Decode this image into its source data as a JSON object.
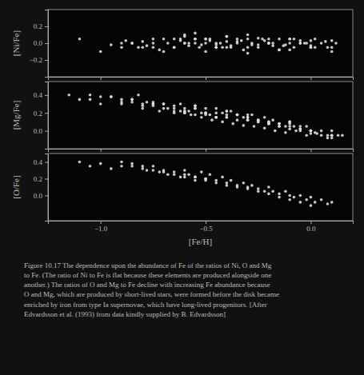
{
  "chart_data": [
    {
      "type": "scatter",
      "ylabel": "[Ni/Fe]",
      "color": "#dddddd",
      "tick_labels": "y",
      "xlim": [
        -1.25,
        0.2
      ],
      "ylim": [
        -0.4,
        0.4
      ],
      "xticks": [
        -1.0,
        -0.5,
        0.0
      ],
      "yticks": [
        {
          "value": -0.2,
          "label": "−0.2"
        },
        {
          "value": 0.0,
          "label": "0.0"
        },
        0.2
      ],
      "x": [
        -1.1,
        -0.95,
        -0.9,
        -0.88,
        -0.85,
        -0.82,
        -0.8,
        -0.78,
        -0.75,
        -0.72,
        -0.7,
        -0.68,
        -0.65,
        -0.62,
        -0.6,
        -0.58,
        -0.55,
        -0.52,
        -0.5,
        -0.48,
        -0.45,
        -0.42,
        -0.4,
        -0.38,
        -0.35,
        -0.32,
        -0.3,
        -0.28,
        -0.25,
        -0.22,
        -0.2,
        -0.18,
        -0.15,
        -0.12,
        -0.1,
        -0.08,
        -0.05,
        -0.02,
        0.0,
        0.02,
        0.05,
        0.08,
        0.1,
        -0.6,
        -0.55,
        -0.5,
        -0.45,
        -0.4,
        -0.35,
        -0.3,
        -0.25,
        -0.2,
        -0.15,
        -0.1,
        -0.05,
        0.0,
        -0.7,
        -0.65,
        -0.6,
        -0.55,
        -0.5,
        -0.45,
        -0.4,
        -0.3,
        -0.2,
        -0.1,
        0.0,
        0.1,
        -0.8,
        -0.75,
        -0.9,
        -1.0,
        -0.6,
        -0.5,
        -0.4,
        -0.3,
        -0.2,
        -0.1,
        0.0,
        0.1,
        -0.85,
        -0.75,
        -0.65,
        -0.55,
        -0.45,
        -0.35,
        -0.25,
        -0.15,
        -0.05,
        -0.62,
        -0.58,
        -0.53,
        -0.48,
        -0.43,
        -0.38,
        -0.33,
        -0.28,
        -0.23,
        -0.18,
        -0.13,
        -0.08,
        -0.03,
        0.02,
        0.07,
        0.12
      ],
      "values": [
        0.05,
        -0.02,
        0.0,
        0.03,
        0.0,
        -0.05,
        0.02,
        -0.03,
        0.0,
        -0.08,
        0.05,
        0.0,
        -0.05,
        0.03,
        0.0,
        -0.03,
        0.05,
        -0.02,
        0.0,
        0.03,
        0.0,
        -0.05,
        0.02,
        -0.03,
        0.0,
        -0.08,
        0.05,
        0.0,
        -0.05,
        0.03,
        0.0,
        -0.03,
        0.05,
        -0.02,
        0.0,
        -0.05,
        0.03,
        0.0,
        -0.03,
        0.05,
        0.0,
        -0.05,
        0.03,
        0.08,
        0.12,
        0.05,
        -0.02,
        0.08,
        0.02,
        -0.05,
        0.06,
        0.0,
        -0.08,
        0.05,
        0.0,
        -0.05,
        -0.1,
        -0.05,
        0.0,
        0.05,
        -0.1,
        -0.05,
        0.08,
        -0.12,
        0.05,
        -0.08,
        0.03,
        -0.05,
        -0.05,
        0.05,
        -0.05,
        -0.1,
        0.1,
        0.05,
        -0.05,
        0.1,
        0.0,
        0.05,
        -0.05,
        -0.1,
        0.0,
        -0.05,
        0.05,
        0.0,
        -0.05,
        0.05,
        -0.02,
        -0.08,
        0.0,
        0.05,
        0.0,
        -0.05,
        0.05,
        0.0,
        -0.05,
        0.03,
        -0.02,
        0.05,
        0.0,
        -0.03,
        0.05,
        0.0,
        -0.05,
        0.02,
        0.0
      ]
    },
    {
      "type": "scatter",
      "ylabel": "[Mg/Fe]",
      "color": "#dddddd",
      "tick_labels": "y",
      "xlim": [
        -1.25,
        0.2
      ],
      "ylim": [
        -0.2,
        0.55
      ],
      "xticks": [
        -1.0,
        -0.5,
        0.0
      ],
      "yticks": [
        {
          "value": 0.0,
          "label": "0.0"
        },
        0.2,
        0.4
      ],
      "x": [
        -1.1,
        -1.05,
        -1.0,
        -0.95,
        -0.9,
        -0.85,
        -0.82,
        -0.8,
        -0.78,
        -0.75,
        -0.72,
        -0.7,
        -0.68,
        -0.65,
        -0.62,
        -0.6,
        -0.58,
        -0.55,
        -0.52,
        -0.5,
        -0.48,
        -0.45,
        -0.42,
        -0.4,
        -0.38,
        -0.35,
        -0.32,
        -0.3,
        -0.28,
        -0.25,
        -0.22,
        -0.2,
        -0.18,
        -0.15,
        -0.12,
        -0.1,
        -0.08,
        -0.05,
        -0.02,
        0.0,
        0.02,
        0.05,
        0.08,
        0.1,
        0.15,
        -0.6,
        -0.55,
        -0.5,
        -0.45,
        -0.4,
        -0.35,
        -0.3,
        -0.25,
        -0.2,
        -0.15,
        -0.1,
        -0.05,
        0.0,
        -0.7,
        -0.65,
        -0.6,
        -0.55,
        -0.5,
        -0.45,
        -0.4,
        -0.3,
        -0.2,
        -0.1,
        0.0,
        0.1,
        -0.8,
        -0.75,
        -0.9,
        -1.0,
        -0.6,
        -0.5,
        -0.4,
        -0.3,
        -0.2,
        -0.1,
        0.0,
        0.1,
        -0.85,
        -0.75,
        -0.65,
        -0.55,
        -0.45,
        -0.35,
        -0.25,
        -0.15,
        -0.05,
        -1.15,
        -1.05,
        -0.95,
        -0.9,
        -0.85,
        -0.8,
        -0.75,
        -0.7,
        -0.65,
        -0.6,
        -0.55,
        -0.5,
        -0.45,
        -0.4,
        -0.35,
        -0.3,
        -0.25,
        -0.2,
        -0.15,
        -0.1,
        -0.05,
        0.0,
        0.05,
        0.1,
        -0.62,
        -0.57,
        -0.52,
        -0.47,
        -0.42,
        -0.37,
        -0.32,
        -0.27,
        -0.22,
        -0.17,
        -0.12,
        -0.07,
        -0.02,
        0.03,
        0.08,
        0.13
      ],
      "values": [
        0.35,
        0.4,
        0.3,
        0.38,
        0.3,
        0.35,
        0.4,
        0.25,
        0.32,
        0.3,
        0.22,
        0.3,
        0.25,
        0.2,
        0.3,
        0.25,
        0.22,
        0.28,
        0.2,
        0.25,
        0.18,
        0.25,
        0.2,
        0.15,
        0.22,
        0.18,
        0.15,
        0.12,
        0.18,
        0.12,
        0.15,
        0.1,
        0.12,
        0.08,
        0.05,
        0.1,
        0.05,
        0.02,
        0.05,
        0.0,
        -0.02,
        0.0,
        -0.05,
        0.0,
        -0.05,
        0.22,
        0.28,
        0.2,
        0.15,
        0.22,
        0.18,
        0.15,
        0.12,
        0.08,
        0.05,
        0.1,
        0.05,
        0.0,
        0.3,
        0.25,
        0.2,
        0.25,
        0.2,
        0.15,
        0.22,
        0.18,
        0.1,
        0.08,
        0.0,
        -0.05,
        0.3,
        0.32,
        0.35,
        0.38,
        0.2,
        0.2,
        0.18,
        0.15,
        0.08,
        0.05,
        0.0,
        -0.05,
        0.32,
        0.28,
        0.22,
        0.18,
        0.15,
        0.12,
        0.1,
        0.08,
        0.02,
        0.4,
        0.35,
        0.38,
        0.32,
        0.35,
        0.28,
        0.3,
        0.25,
        0.28,
        0.22,
        0.25,
        0.18,
        0.2,
        0.15,
        0.18,
        0.12,
        0.1,
        0.08,
        0.05,
        0.02,
        0.0,
        -0.03,
        -0.05,
        -0.08,
        0.22,
        0.18,
        0.15,
        0.12,
        0.1,
        0.08,
        0.06,
        0.05,
        0.03,
        0.0,
        -0.02,
        0.0,
        -0.05,
        -0.03,
        -0.08,
        -0.05
      ]
    },
    {
      "type": "scatter",
      "ylabel": "[O/Fe]",
      "xlabel": "[Fe/H]",
      "color": "#dddddd",
      "xlim": [
        -1.25,
        0.2
      ],
      "ylim": [
        -0.3,
        0.5
      ],
      "xticks": [
        {
          "value": -1.0,
          "label": "−1.0"
        },
        {
          "value": -0.5,
          "label": "−0.5"
        },
        {
          "value": 0.0,
          "label": "0.0"
        }
      ],
      "yticks": [
        {
          "value": 0.0,
          "label": "0.0"
        },
        0.2,
        0.4
      ],
      "x": [
        -1.1,
        -1.05,
        -1.0,
        -0.95,
        -0.9,
        -0.85,
        -0.8,
        -0.78,
        -0.75,
        -0.72,
        -0.7,
        -0.68,
        -0.65,
        -0.62,
        -0.6,
        -0.58,
        -0.55,
        -0.52,
        -0.5,
        -0.48,
        -0.45,
        -0.42,
        -0.4,
        -0.38,
        -0.35,
        -0.32,
        -0.3,
        -0.28,
        -0.25,
        -0.22,
        -0.2,
        -0.18,
        -0.15,
        -0.12,
        -0.1,
        -0.08,
        -0.05,
        -0.02,
        0.0,
        0.02,
        0.05,
        0.08,
        0.1,
        -0.6,
        -0.55,
        -0.5,
        -0.45,
        -0.4,
        -0.35,
        -0.3,
        -0.25,
        -0.2,
        -0.15,
        -0.1,
        -0.05,
        0.0,
        -0.7,
        -0.65,
        -0.6,
        -0.55,
        -0.5,
        -0.8,
        -0.75,
        -0.9,
        -0.85
      ],
      "values": [
        0.4,
        0.35,
        0.38,
        0.32,
        0.35,
        0.38,
        0.32,
        0.3,
        0.35,
        0.28,
        0.3,
        0.25,
        0.28,
        0.22,
        0.3,
        0.25,
        0.22,
        0.28,
        0.2,
        0.25,
        0.18,
        0.22,
        0.15,
        0.18,
        0.12,
        0.15,
        0.1,
        0.12,
        0.08,
        0.05,
        0.1,
        0.05,
        0.02,
        0.05,
        0.0,
        -0.02,
        0.0,
        -0.05,
        -0.02,
        -0.08,
        -0.05,
        -0.1,
        -0.08,
        0.25,
        0.22,
        0.18,
        0.15,
        0.12,
        0.1,
        0.08,
        0.05,
        0.02,
        -0.02,
        -0.05,
        -0.08,
        -0.12,
        0.28,
        0.25,
        0.22,
        0.18,
        0.2,
        0.35,
        0.3,
        0.4,
        0.35
      ],
      "annotations": [
        "Figure 10.17 The dependence upon the abundance of Fe of the ratios of Ni, O and Mg",
        "to Fe. (The ratio of Ni to Fe is flat because these elements are produced alongside one",
        "another.) The ratios of O and Mg to Fe decline with increasing Fe abundance because",
        "O and Mg, which are produced by short-lived stars, were formed before the disk became",
        "enriched by iron from type Ia supernovae, which have long-lived progenitors. [After",
        "Edvardsson et al. (1993) from data kindly supplied by B. Edvardsson]"
      ]
    }
  ]
}
